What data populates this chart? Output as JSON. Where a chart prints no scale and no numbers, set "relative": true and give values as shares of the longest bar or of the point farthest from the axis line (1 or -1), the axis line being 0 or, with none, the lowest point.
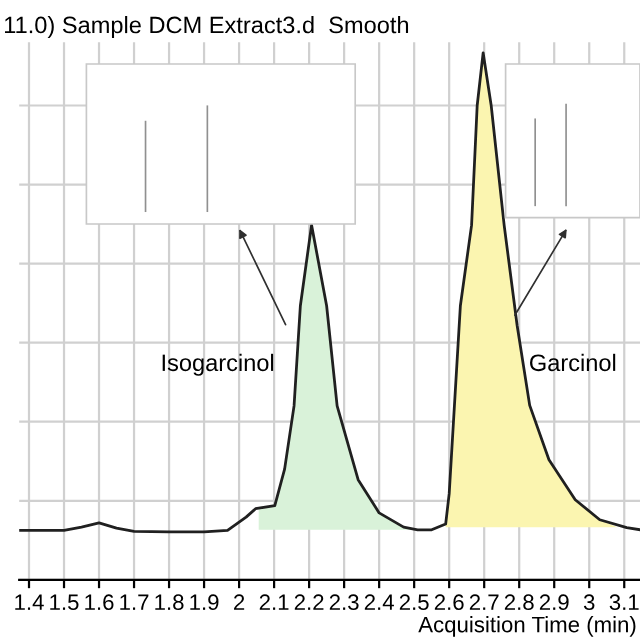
{
  "chart_data": {
    "type": "line",
    "title": "11.0) Sample DCM Extract3.d  Smooth",
    "xlabel": "Acquisition Time (min)",
    "relative": true,
    "xlim": [
      1.372,
      3.145
    ],
    "xticks": [
      1.4,
      1.5,
      1.6,
      1.7,
      1.8,
      1.9,
      2,
      2.1,
      2.2,
      2.3,
      2.4,
      2.5,
      2.6,
      2.7,
      2.8,
      2.9,
      3,
      3.1
    ],
    "grid": true,
    "marker": "none",
    "line_style": "solid",
    "series": [
      {
        "type": "area",
        "color": "#d9f2d9",
        "x": [
          2.056,
          2.102,
          2.13,
          2.157,
          2.175,
          2.207,
          2.25,
          2.28,
          2.34,
          2.4,
          2.47,
          2.51
        ],
        "values": [
          0.138,
          0.141,
          0.21,
          0.33,
          0.52,
          0.673,
          0.52,
          0.33,
          0.19,
          0.127,
          0.1,
          0.095
        ]
      },
      {
        "type": "area",
        "color": "#fbf5b0",
        "x": [
          2.59,
          2.6,
          2.632,
          2.664,
          2.68,
          2.697,
          2.72,
          2.757,
          2.794,
          2.83,
          2.885,
          2.96,
          3.03,
          3.08
        ],
        "values": [
          0.106,
          0.163,
          0.52,
          0.673,
          0.9,
          1,
          0.9,
          0.673,
          0.483,
          0.331,
          0.228,
          0.152,
          0.114,
          0.1
        ]
      },
      {
        "color": "#202020",
        "x": [
          1.372,
          1.5,
          1.55,
          1.6,
          1.65,
          1.7,
          1.8,
          1.9,
          1.967,
          2.02,
          2.047,
          2.102,
          2.13,
          2.157,
          2.175,
          2.207,
          2.25,
          2.28,
          2.34,
          2.4,
          2.47,
          2.51,
          2.55,
          2.59,
          2.6,
          2.632,
          2.664,
          2.68,
          2.697,
          2.72,
          2.757,
          2.794,
          2.83,
          2.885,
          2.96,
          3.03,
          3.107,
          3.145
        ],
        "values": [
          0.094,
          0.094,
          0.1,
          0.108,
          0.098,
          0.092,
          0.091,
          0.091,
          0.094,
          0.119,
          0.135,
          0.141,
          0.21,
          0.33,
          0.52,
          0.673,
          0.52,
          0.33,
          0.19,
          0.127,
          0.1,
          0.095,
          0.095,
          0.106,
          0.163,
          0.52,
          0.673,
          0.9,
          1,
          0.9,
          0.673,
          0.483,
          0.331,
          0.228,
          0.152,
          0.114,
          0.099,
          0.095
        ]
      }
    ],
    "annotations": [
      "Isogarcinol",
      "Garcinol"
    ]
  }
}
